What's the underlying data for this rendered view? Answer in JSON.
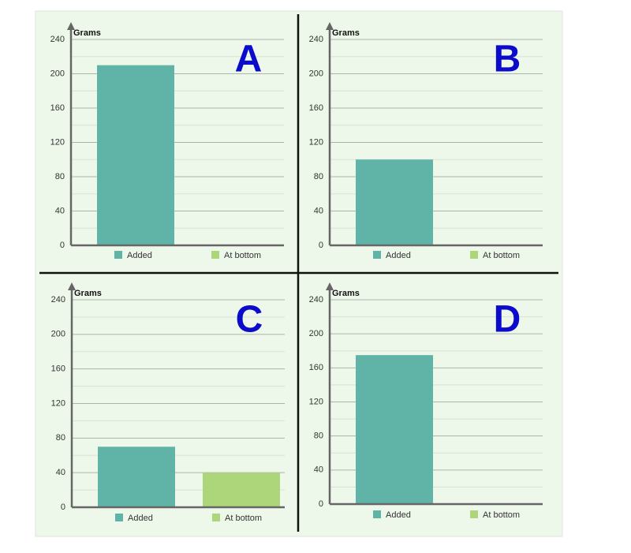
{
  "chart_data": [
    {
      "type": "bar",
      "title": "A",
      "y_label": "Grams",
      "categories": [
        "Added",
        "At bottom"
      ],
      "values": [
        210,
        0
      ],
      "colors": [
        "#5fb3a7",
        "#add67a"
      ],
      "ylim": [
        0,
        240
      ],
      "yticks": [
        0,
        40,
        80,
        120,
        160,
        200,
        240
      ],
      "minor_yticks": [
        20,
        60,
        100,
        140,
        180,
        220
      ],
      "grid": true
    },
    {
      "type": "bar",
      "title": "B",
      "y_label": "Grams",
      "categories": [
        "Added",
        "At bottom"
      ],
      "values": [
        100,
        0
      ],
      "colors": [
        "#5fb3a7",
        "#add67a"
      ],
      "ylim": [
        0,
        240
      ],
      "yticks": [
        0,
        40,
        80,
        120,
        160,
        200,
        240
      ],
      "minor_yticks": [
        20,
        60,
        100,
        140,
        180,
        220
      ],
      "grid": true
    },
    {
      "type": "bar",
      "title": "C",
      "y_label": "Grams",
      "categories": [
        "Added",
        "At bottom"
      ],
      "values": [
        70,
        40
      ],
      "colors": [
        "#5fb3a7",
        "#add67a"
      ],
      "ylim": [
        0,
        240
      ],
      "yticks": [
        0,
        40,
        80,
        120,
        160,
        200,
        240
      ],
      "minor_yticks": [
        20,
        60,
        100,
        140,
        180,
        220
      ],
      "grid": true
    },
    {
      "type": "bar",
      "title": "D",
      "y_label": "Grams",
      "categories": [
        "Added",
        "At bottom"
      ],
      "values": [
        175,
        0
      ],
      "colors": [
        "#5fb3a7",
        "#add67a"
      ],
      "ylim": [
        0,
        240
      ],
      "yticks": [
        0,
        40,
        80,
        120,
        160,
        200,
        240
      ],
      "minor_yticks": [
        20,
        60,
        100,
        140,
        180,
        220
      ],
      "grid": true
    }
  ]
}
